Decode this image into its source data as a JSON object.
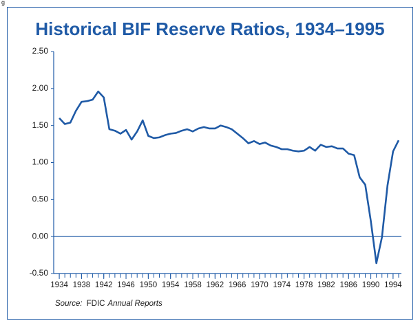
{
  "figure_label": "g",
  "chart_data": {
    "type": "line",
    "title": "Historical BIF Reserve Ratios, 1934–1995",
    "x": [
      1934,
      1935,
      1936,
      1937,
      1938,
      1939,
      1940,
      1941,
      1942,
      1943,
      1944,
      1945,
      1946,
      1947,
      1948,
      1949,
      1950,
      1951,
      1952,
      1953,
      1954,
      1955,
      1956,
      1957,
      1958,
      1959,
      1960,
      1961,
      1962,
      1963,
      1964,
      1965,
      1966,
      1967,
      1968,
      1969,
      1970,
      1971,
      1972,
      1973,
      1974,
      1975,
      1976,
      1977,
      1978,
      1979,
      1980,
      1981,
      1982,
      1983,
      1984,
      1985,
      1986,
      1987,
      1988,
      1989,
      1990,
      1991,
      1992,
      1993,
      1994,
      1995
    ],
    "series": [
      {
        "name": null,
        "color": "#1f5aa6",
        "values": [
          1.6,
          1.52,
          1.54,
          1.7,
          1.82,
          1.83,
          1.85,
          1.96,
          1.88,
          1.45,
          1.43,
          1.39,
          1.44,
          1.31,
          1.42,
          1.57,
          1.36,
          1.33,
          1.34,
          1.37,
          1.39,
          1.4,
          1.43,
          1.45,
          1.42,
          1.46,
          1.48,
          1.46,
          1.46,
          1.5,
          1.48,
          1.45,
          1.39,
          1.33,
          1.26,
          1.29,
          1.25,
          1.27,
          1.23,
          1.21,
          1.18,
          1.18,
          1.16,
          1.15,
          1.16,
          1.21,
          1.16,
          1.24,
          1.21,
          1.22,
          1.19,
          1.19,
          1.12,
          1.1,
          0.8,
          0.7,
          0.21,
          -0.36,
          -0.01,
          0.69,
          1.15,
          1.3
        ]
      }
    ],
    "xlim": [
      1933,
      1995.5
    ],
    "xticks": [
      1934,
      1938,
      1942,
      1946,
      1950,
      1954,
      1958,
      1962,
      1966,
      1970,
      1974,
      1978,
      1982,
      1986,
      1990,
      1994
    ],
    "ylim": [
      -0.5,
      2.5
    ],
    "yticks": [
      {
        "value": -0.5,
        "label": "-0.50"
      },
      {
        "value": 0,
        "label": "0.00"
      },
      {
        "value": 0.5,
        "label": "0.50"
      },
      {
        "value": 1,
        "label": "1.00"
      },
      {
        "value": 1.5,
        "label": "1.50"
      },
      {
        "value": 2,
        "label": "2.00"
      },
      {
        "value": 2.5,
        "label": "2.50"
      }
    ],
    "reference_line": 0,
    "source_label": "Source:",
    "source_org": "FDIC",
    "source_title": "Annual Reports"
  }
}
